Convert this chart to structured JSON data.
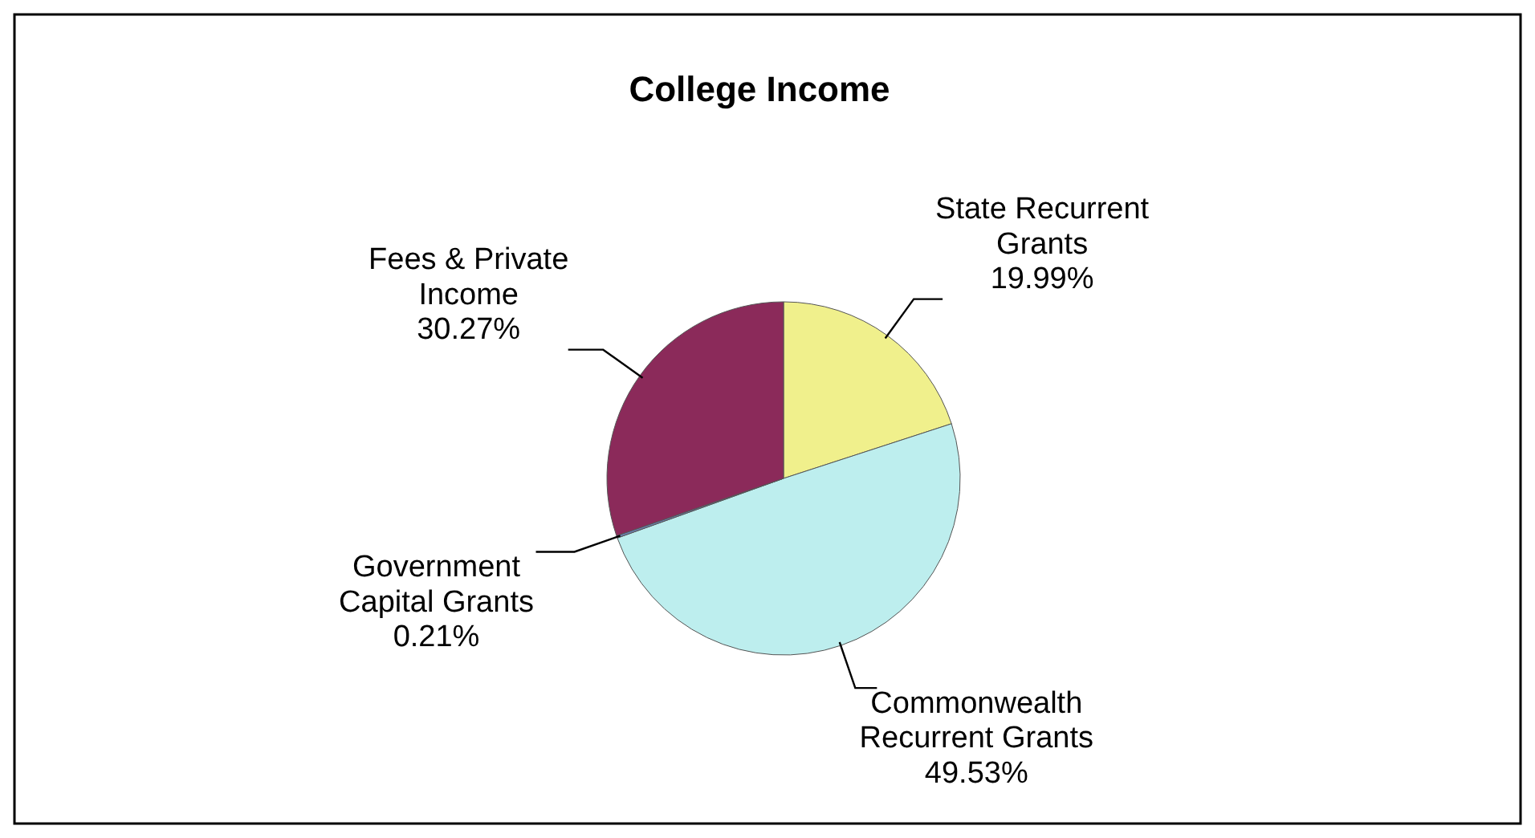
{
  "chart_data": {
    "type": "pie",
    "title": "College Income",
    "categories": [
      "State Recurrent Grants",
      "Commonwealth Recurrent Grants",
      "Government Capital Grants",
      "Fees & Private Income"
    ],
    "values": [
      19.99,
      49.53,
      0.21,
      30.27
    ],
    "value_labels": [
      "19.99%",
      "49.53%",
      "0.21%",
      "30.27%"
    ],
    "colors": [
      "#f0f08c",
      "#bdeeee",
      "#6a7fb0",
      "#8b2a5a"
    ],
    "legend": false
  }
}
